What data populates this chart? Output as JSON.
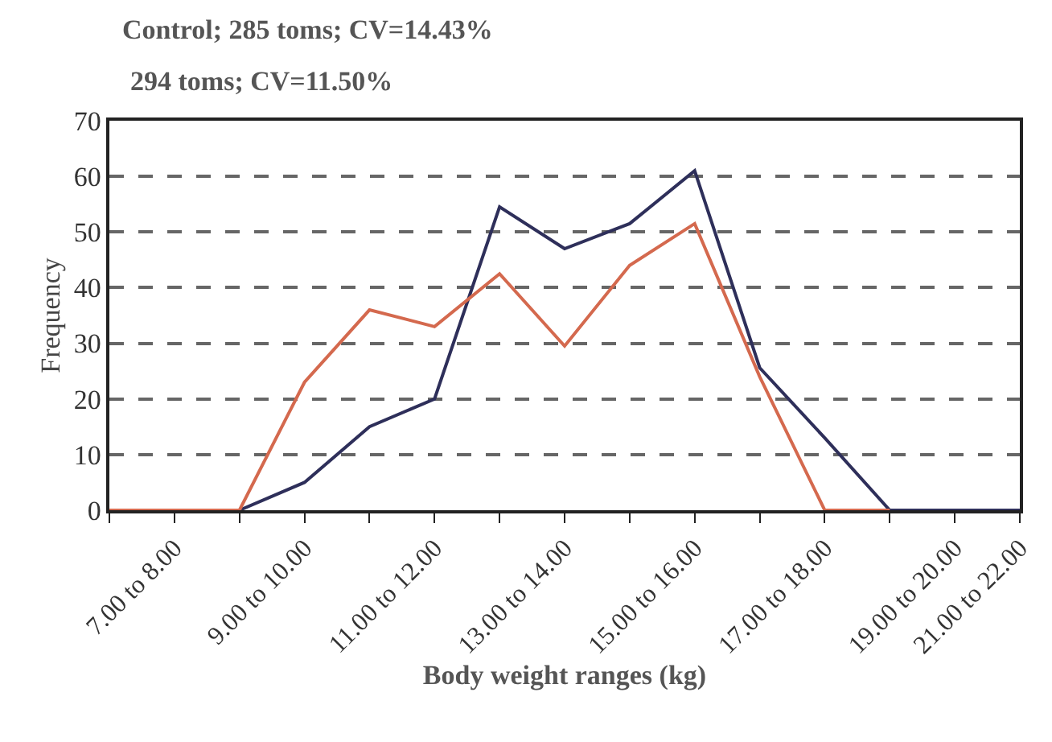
{
  "chart_data": {
    "type": "line",
    "xlabel": "Body weight ranges (kg)",
    "ylabel": "Frequency",
    "annotations": [
      "Control; 285 toms; CV=14.43%",
      "294 toms; CV=11.50%"
    ],
    "categories": [
      null,
      "7.00 to 8.00",
      null,
      "9.00 to 10.00",
      null,
      "11.00 to 12.00",
      null,
      "13.00 to 14.00",
      null,
      "15.00 to 16.00",
      null,
      "17.00 to 18.00",
      null,
      "19.00 to 20.00",
      "21.00 to 22.00"
    ],
    "ylim": [
      0,
      70
    ],
    "yticks": [
      0,
      10,
      20,
      30,
      40,
      50,
      60,
      70
    ],
    "grid": "y",
    "legend": false,
    "marker": "none",
    "line_style": "solid",
    "series": [
      {
        "color": "#2e2f5a",
        "values": [
          0,
          0,
          0,
          5,
          15,
          20,
          54.5,
          47,
          51.5,
          61,
          25.6,
          13,
          0,
          0,
          0
        ]
      },
      {
        "color": "#d4694e",
        "values": [
          0,
          0,
          0,
          23,
          36,
          33,
          42.5,
          29.5,
          44,
          51.5,
          24,
          0,
          0,
          null,
          null
        ]
      }
    ]
  }
}
